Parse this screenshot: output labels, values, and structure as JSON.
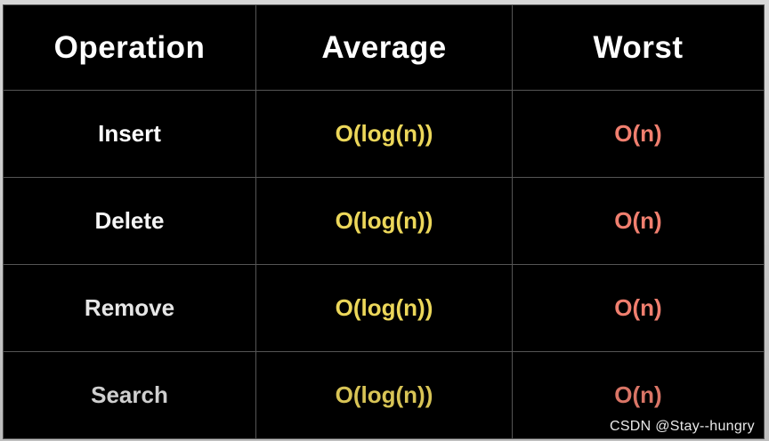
{
  "table": {
    "headers": [
      "Operation",
      "Average",
      "Worst"
    ],
    "rows": [
      {
        "operation": "Insert",
        "average": "O(log(n))",
        "worst": "O(n)"
      },
      {
        "operation": "Delete",
        "average": "O(log(n))",
        "worst": "O(n)"
      },
      {
        "operation": "Remove",
        "average": "O(log(n))",
        "worst": "O(n)"
      },
      {
        "operation": "Search",
        "average": "O(log(n))",
        "worst": "O(n)"
      }
    ]
  },
  "watermark": "CSDN @Stay--hungry",
  "colors": {
    "background": "#000000",
    "header_text": "#ffffff",
    "average_text": "#ecd75a",
    "worst_text": "#f07f6f",
    "grid_line": "#555555"
  }
}
